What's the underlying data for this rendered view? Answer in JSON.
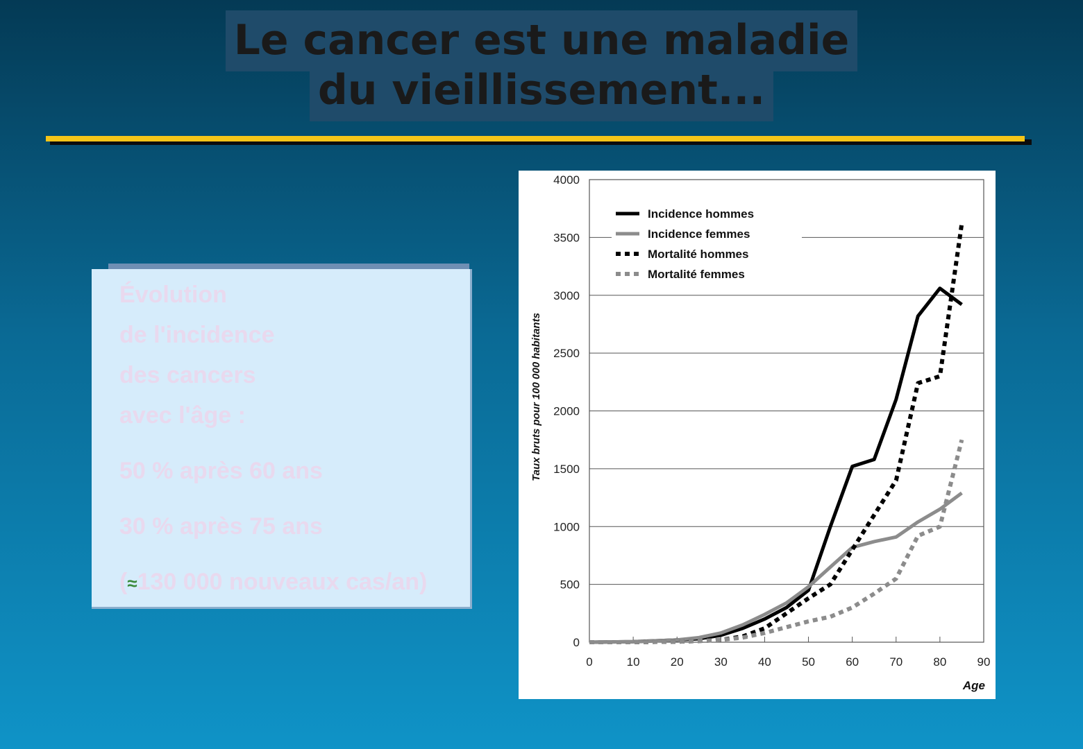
{
  "title": {
    "line1": "Le cancer est une maladie",
    "line2": "du vieillissement..."
  },
  "textbox": {
    "line1": "Évolution",
    "line2": "de l'incidence",
    "line3": "des cancers",
    "line4": "avec l'âge :",
    "stat1": "50 % après 60 ans",
    "stat2": "30 % après 75 ans",
    "stat3_open": "(",
    "approx_symbol": "≈",
    "stat3_rest": "130 000 nouveaux cas/an)"
  },
  "colors": {
    "title_bg": "#1f4b6a",
    "rule": "#f5c518",
    "textbox_bg": "#d6ecfb",
    "textbox_text": "#e9d9ee"
  },
  "chart_data": {
    "type": "line",
    "ylabel": "Taux bruts pour 100 000 habitants",
    "xlabel": "Age",
    "xlim": [
      0,
      90
    ],
    "ylim": [
      0,
      4000
    ],
    "x_ticks": [
      "0",
      "10",
      "20",
      "30",
      "40",
      "50",
      "60",
      "70",
      "80",
      "90"
    ],
    "y_ticks": [
      "0",
      "500",
      "1000",
      "1500",
      "2000",
      "2500",
      "3000",
      "3500",
      "4000"
    ],
    "grid": "horizontal",
    "legend_position": "top-left",
    "series": [
      {
        "name": "Incidence hommes",
        "color": "#000000",
        "style": "solid",
        "x": [
          0,
          10,
          20,
          25,
          30,
          35,
          40,
          45,
          50,
          55,
          60,
          65,
          70,
          75,
          80,
          85
        ],
        "y": [
          0,
          5,
          20,
          30,
          60,
          120,
          200,
          300,
          450,
          1000,
          1520,
          1580,
          2100,
          2820,
          3060,
          2920
        ]
      },
      {
        "name": "Incidence femmes",
        "color": "#8c8c8c",
        "style": "solid",
        "x": [
          0,
          10,
          20,
          25,
          30,
          35,
          40,
          45,
          50,
          55,
          60,
          65,
          70,
          75,
          80,
          85
        ],
        "y": [
          0,
          5,
          20,
          40,
          80,
          150,
          240,
          340,
          480,
          650,
          820,
          870,
          910,
          1040,
          1150,
          1290
        ]
      },
      {
        "name": "Mortalité hommes",
        "color": "#000000",
        "style": "dashed",
        "x": [
          0,
          10,
          20,
          25,
          30,
          35,
          40,
          45,
          50,
          55,
          60,
          65,
          70,
          75,
          80,
          85
        ],
        "y": [
          0,
          0,
          5,
          10,
          20,
          50,
          120,
          250,
          380,
          500,
          800,
          1100,
          1400,
          2240,
          2300,
          3620
        ]
      },
      {
        "name": "Mortalité femmes",
        "color": "#8c8c8c",
        "style": "dashed",
        "x": [
          0,
          10,
          20,
          25,
          30,
          35,
          40,
          45,
          50,
          55,
          60,
          65,
          70,
          75,
          80,
          85
        ],
        "y": [
          0,
          0,
          5,
          10,
          20,
          40,
          80,
          130,
          180,
          220,
          300,
          420,
          550,
          920,
          1000,
          1750
        ]
      }
    ]
  }
}
